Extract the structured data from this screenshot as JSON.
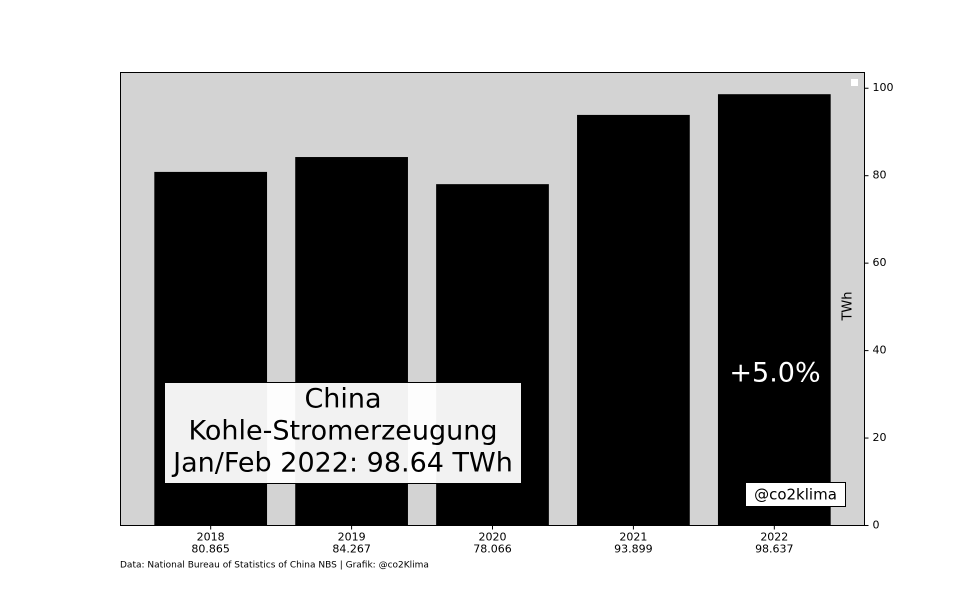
{
  "chart_data": {
    "type": "bar",
    "categories": [
      "2018",
      "2019",
      "2020",
      "2021",
      "2022"
    ],
    "values": [
      80.865,
      84.267,
      78.066,
      93.899,
      98.637
    ],
    "color": "#000000",
    "ylim": [
      0,
      103.6
    ],
    "yticks": [
      0,
      20,
      40,
      60,
      80,
      100
    ],
    "ylabel": "TWh",
    "annotation": [
      "China",
      "Kohle-Stromerzeugung",
      "Jan/Feb 2022: 98.64 TWh"
    ],
    "change_label": "+5.0%",
    "watermark": "@co2klima",
    "source": "Data: National Bureau of Statistics of China NBS | Grafik: @co2Klima"
  }
}
